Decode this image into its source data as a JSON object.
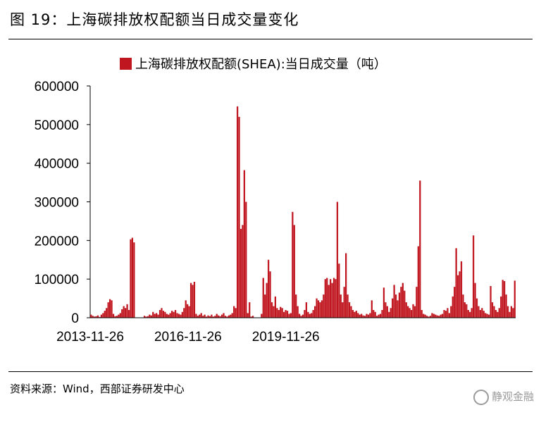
{
  "figure": {
    "title": "图 19：上海碳排放权配额当日成交量变化",
    "source": "资料来源：Wind，西部证券研发中心",
    "watermark": "静观金融"
  },
  "colors": {
    "bar": "#C0161F",
    "axis": "#000000"
  },
  "chart_data": {
    "type": "bar",
    "title": "",
    "xlabel": "",
    "ylabel": "",
    "ylim": [
      0,
      600000
    ],
    "yticks": [
      0,
      100000,
      200000,
      300000,
      400000,
      500000,
      600000
    ],
    "xtick_labels": [
      "2013-11-26",
      "2016-11-26",
      "2019-11-26"
    ],
    "grid": false,
    "legend_position": "top",
    "series": [
      {
        "name": "上海碳排放权配额(SHEA):当日成交量（吨）",
        "values": [
          8000,
          5000,
          3000,
          4000,
          6000,
          2000,
          8000,
          12000,
          18000,
          25000,
          40000,
          48000,
          45000,
          10000,
          4000,
          5000,
          8000,
          12000,
          22000,
          30000,
          25000,
          35000,
          20000,
          203000,
          207000,
          195000,
          0,
          0,
          0,
          0,
          0,
          5000,
          3000,
          4000,
          8000,
          6000,
          15000,
          10000,
          12000,
          8000,
          20000,
          25000,
          18000,
          15000,
          10000,
          8000,
          12000,
          18000,
          15000,
          20000,
          12000,
          10000,
          8000,
          15000,
          25000,
          45000,
          35000,
          30000,
          90000,
          85000,
          93000,
          10000,
          5000,
          8000,
          12000,
          5000,
          8000,
          3000,
          6000,
          4000,
          8000,
          3000,
          5000,
          10000,
          6000,
          4000,
          8000,
          12000,
          5000,
          3000,
          6000,
          8000,
          12000,
          30000,
          25000,
          547000,
          520000,
          230000,
          240000,
          382000,
          300000,
          12000,
          40000,
          3000,
          5000,
          0,
          0,
          0,
          0,
          10000,
          103000,
          60000,
          90000,
          150000,
          120000,
          40000,
          30000,
          55000,
          25000,
          20000,
          28000,
          25000,
          15000,
          20000,
          18000,
          10000,
          12000,
          274000,
          240000,
          60000,
          30000,
          10000,
          5000,
          8000,
          20000,
          40000,
          15000,
          10000,
          12000,
          20000,
          30000,
          50000,
          45000,
          40000,
          45000,
          60000,
          100000,
          103000,
          85000,
          100000,
          90000,
          103000,
          100000,
          300000,
          140000,
          60000,
          40000,
          80000,
          167000,
          60000,
          40000,
          30000,
          20000,
          15000,
          18000,
          12000,
          8000,
          10000,
          6000,
          5000,
          10000,
          8000,
          12000,
          45000,
          20000,
          15000,
          5000,
          8000,
          10000,
          20000,
          78000,
          40000,
          30000,
          15000,
          25000,
          50000,
          85000,
          60000,
          45000,
          65000,
          80000,
          90000,
          70000,
          40000,
          30000,
          25000,
          20000,
          35000,
          30000,
          80000,
          185000,
          355000,
          20000,
          10000,
          8000,
          5000,
          3000,
          5000,
          12000,
          10000,
          8000,
          6000,
          5000,
          8000,
          10000,
          20000,
          18000,
          25000,
          12000,
          30000,
          55000,
          80000,
          180000,
          110000,
          120000,
          146000,
          60000,
          40000,
          35000,
          20000,
          15000,
          25000,
          213000,
          90000,
          50000,
          30000,
          20000,
          25000,
          18000,
          12000,
          10000,
          8000,
          82000,
          40000,
          30000,
          20000,
          15000,
          25000,
          55000,
          98000,
          95000,
          60000,
          30000,
          15000,
          30000,
          25000,
          96000
        ]
      }
    ]
  }
}
